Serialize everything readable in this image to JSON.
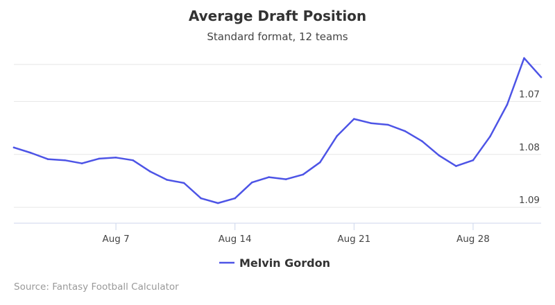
{
  "chart_data": {
    "type": "line",
    "title": "Average Draft Position",
    "subtitle": "Standard format, 12 teams",
    "xlabel": "",
    "ylabel": "",
    "x_ticks": [
      "Aug 7",
      "Aug 14",
      "Aug 21",
      "Aug 28"
    ],
    "y_ticks": [
      "1.07",
      "1.08",
      "1.09"
    ],
    "ylim": [
      1.063,
      1.093
    ],
    "y_reversed": true,
    "grid": true,
    "legend_placement": "bottom-center",
    "series": [
      {
        "name": "Melvin Gordon",
        "color": "#4d54e6",
        "x": [
          "Aug 1",
          "Aug 2",
          "Aug 3",
          "Aug 4",
          "Aug 5",
          "Aug 6",
          "Aug 7",
          "Aug 8",
          "Aug 9",
          "Aug 10",
          "Aug 11",
          "Aug 12",
          "Aug 13",
          "Aug 14",
          "Aug 15",
          "Aug 16",
          "Aug 17",
          "Aug 18",
          "Aug 19",
          "Aug 20",
          "Aug 21",
          "Aug 22",
          "Aug 23",
          "Aug 24",
          "Aug 25",
          "Aug 26",
          "Aug 27",
          "Aug 28",
          "Aug 29",
          "Aug 30",
          "Aug 31",
          "Sep 1"
        ],
        "values": [
          1.0787,
          1.0797,
          1.0809,
          1.0811,
          1.0817,
          1.0808,
          1.0806,
          1.0811,
          1.0832,
          1.0848,
          1.0854,
          1.0883,
          1.0892,
          1.0883,
          1.0853,
          1.0843,
          1.0847,
          1.0838,
          1.0815,
          1.0765,
          1.0733,
          1.0741,
          1.0744,
          1.0756,
          1.0775,
          1.0802,
          1.0822,
          1.0811,
          1.0766,
          1.0706,
          1.0618,
          1.0654
        ]
      }
    ]
  },
  "source": "Source: Fantasy Football Calculator"
}
